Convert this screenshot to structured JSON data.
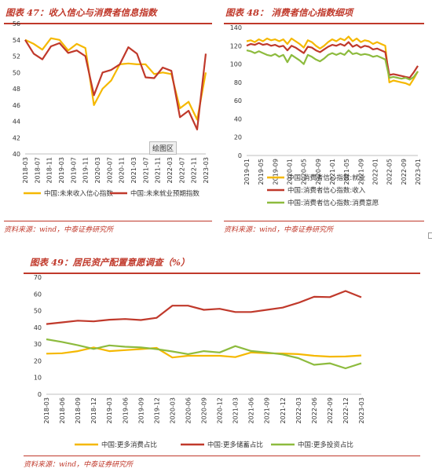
{
  "panels": {
    "p47": {
      "title": "图表 47：收入信心与消费者信息指数",
      "source": "资料来源：wind，中泰证券研究所",
      "tooltip": "绘图区"
    },
    "p48": {
      "title": "图表 48：  消费者信心指数细项",
      "source": "资料来源：wind，中泰证券研究所"
    },
    "p49": {
      "title": "图表 49：居民资产配置意愿调查（%）",
      "source": "资料来源：wind，中泰证券研究所"
    }
  },
  "chart_data": [
    {
      "id": "chart47",
      "type": "line",
      "x_ticks": [
        "2018-03",
        "2018-07",
        "2018-11",
        "2019-03",
        "2019-07",
        "2019-11",
        "2020-03",
        "2020-07",
        "2020-11",
        "2021-03",
        "2021-07",
        "2021-11",
        "2022-03",
        "2022-07",
        "2022-11",
        "2023-03"
      ],
      "ylim": [
        40,
        56
      ],
      "y_ticks": [
        40,
        42,
        44,
        46,
        48,
        50,
        52,
        54,
        56
      ],
      "legend": "bottom",
      "series": [
        {
          "name": "中国:未来收入信心指数",
          "color": "#f5b800",
          "values": [
            54.0,
            53.5,
            52.8,
            54.2,
            54.0,
            52.7,
            53.5,
            53.0,
            46.0,
            48.0,
            49.0,
            51.0,
            51.1,
            51.0,
            51.0,
            49.8,
            50.0,
            49.8,
            45.6,
            46.4,
            44.2,
            50.0
          ]
        },
        {
          "name": "中国:未来就业预期指数",
          "color": "#c0392b",
          "values": [
            54.0,
            52.3,
            51.6,
            53.2,
            53.6,
            52.4,
            52.7,
            52.0,
            47.2,
            50.0,
            50.3,
            51.0,
            53.1,
            52.3,
            49.4,
            49.3,
            50.6,
            50.2,
            44.5,
            45.3,
            43.0,
            52.3
          ]
        }
      ]
    },
    {
      "id": "chart48",
      "type": "line",
      "x_ticks": [
        "2019-01",
        "2019-05",
        "2019-09",
        "2020-01",
        "2020-05",
        "2020-09",
        "2021-01",
        "2021-05",
        "2021-09",
        "2022-01",
        "2022-05",
        "2022-09",
        "2023-01"
      ],
      "ylim": [
        0,
        140
      ],
      "y_ticks": [
        0,
        20,
        40,
        60,
        80,
        100,
        120,
        140
      ],
      "legend": "bottom",
      "series": [
        {
          "name": "中国:消费者信心指数:就业",
          "color": "#f5b800",
          "values": [
            125,
            126,
            124,
            127,
            125,
            128,
            126,
            127,
            125,
            127,
            122,
            128,
            125,
            122,
            118,
            126,
            124,
            120,
            117,
            120,
            124,
            127,
            125,
            128,
            126,
            130,
            125,
            128,
            124,
            126,
            125,
            122,
            124,
            122,
            120,
            80,
            82,
            81,
            80,
            79,
            77,
            84,
            92
          ]
        },
        {
          "name": "中国:消费者信心指数:收入",
          "color": "#c0392b",
          "values": [
            120,
            122,
            121,
            123,
            121,
            122,
            120,
            121,
            119,
            120,
            115,
            120,
            118,
            115,
            112,
            119,
            118,
            115,
            113,
            116,
            119,
            121,
            120,
            122,
            120,
            124,
            119,
            121,
            118,
            120,
            119,
            116,
            117,
            115,
            113,
            88,
            89,
            88,
            87,
            86,
            85,
            91,
            98
          ]
        },
        {
          "name": "中国:消费者信心指数:消费意愿",
          "color": "#8dbb3e",
          "values": [
            115,
            114,
            112,
            114,
            112,
            110,
            109,
            111,
            108,
            110,
            102,
            110,
            107,
            104,
            100,
            110,
            108,
            105,
            103,
            106,
            110,
            112,
            110,
            112,
            110,
            115,
            111,
            112,
            110,
            111,
            110,
            108,
            109,
            107,
            105,
            85,
            86,
            85,
            84,
            85,
            83,
            86,
            92
          ]
        }
      ]
    },
    {
      "id": "chart49",
      "type": "line",
      "x_ticks": [
        "2018-03",
        "2018-06",
        "2018-09",
        "2018-12",
        "2019-03",
        "2019-06",
        "2019-09",
        "2019-12",
        "2020-03",
        "2020-06",
        "2020-09",
        "2020-12",
        "2021-03",
        "2021-06",
        "2021-09",
        "2021-12",
        "2022-03",
        "2022-06",
        "2022-09",
        "2022-12",
        "2023-03"
      ],
      "ylim": [
        0,
        70
      ],
      "y_ticks": [
        0,
        10,
        20,
        30,
        40,
        50,
        60,
        70
      ],
      "legend": "bottom",
      "series": [
        {
          "name": "中国:更多消费占比",
          "color": "#f5b800",
          "values": [
            24.3,
            24.5,
            25.8,
            28.0,
            25.8,
            26.4,
            27.0,
            27.7,
            22.0,
            23.0,
            23.0,
            23.0,
            22.2,
            25.0,
            24.5,
            24.4,
            24.0,
            23.0,
            22.5,
            22.6,
            23.2
          ]
        },
        {
          "name": "中国:更多储蓄占比",
          "color": "#c0392b",
          "values": [
            42.0,
            43.0,
            44.0,
            43.6,
            44.6,
            45.0,
            44.4,
            45.7,
            53.0,
            53.0,
            50.5,
            51.1,
            49.2,
            49.2,
            50.5,
            51.8,
            54.7,
            58.3,
            58.1,
            61.8,
            58.0
          ]
        },
        {
          "name": "中国:更多投资占比",
          "color": "#8dbb3e",
          "values": [
            32.9,
            31.3,
            29.3,
            27.1,
            29.2,
            28.4,
            28.0,
            27.0,
            25.6,
            24.0,
            25.8,
            25.0,
            28.8,
            25.9,
            25.0,
            23.8,
            21.6,
            17.6,
            18.5,
            15.5,
            18.5
          ]
        }
      ]
    }
  ]
}
